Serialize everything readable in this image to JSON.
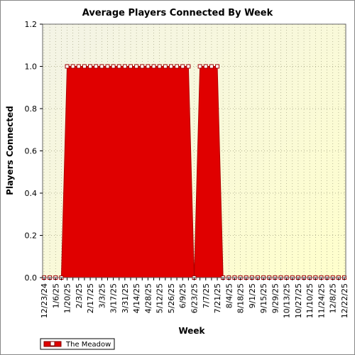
{
  "chart_data": {
    "type": "area",
    "title": "Average Players Connected By Week",
    "xlabel": "Week",
    "ylabel": "Players Connected",
    "ylim": [
      0,
      1.2
    ],
    "yticks": [
      0.0,
      0.2,
      0.4,
      0.6,
      0.8,
      1.0,
      1.2
    ],
    "ytick_labels": [
      "0.0",
      "0.2",
      "0.4",
      "0.6",
      "0.8",
      "1.0",
      "1.2"
    ],
    "grid": true,
    "legend_position": "bottom-left",
    "x": [
      "12/23/24",
      "12/30/24",
      "1/6/25",
      "1/13/25",
      "1/20/25",
      "1/27/25",
      "2/3/25",
      "2/10/25",
      "2/17/25",
      "2/24/25",
      "3/3/25",
      "3/10/25",
      "3/17/25",
      "3/24/25",
      "3/31/25",
      "4/7/25",
      "4/14/25",
      "4/21/25",
      "4/28/25",
      "5/5/25",
      "5/12/25",
      "5/19/25",
      "5/26/25",
      "6/2/25",
      "6/9/25",
      "6/16/25",
      "6/23/25",
      "6/30/25",
      "7/7/25",
      "7/14/25",
      "7/21/25",
      "7/28/25",
      "8/4/25",
      "8/11/25",
      "8/18/25",
      "8/25/25",
      "9/1/25",
      "9/8/25",
      "9/15/25",
      "9/22/25",
      "9/29/25",
      "10/6/25",
      "10/13/25",
      "10/20/25",
      "10/27/25",
      "11/3/25",
      "11/10/25",
      "11/17/25",
      "11/24/25",
      "12/1/25",
      "12/8/25",
      "12/15/25",
      "12/22/25"
    ],
    "x_tick_labels": [
      "12/23/24",
      "1/6/25",
      "1/20/25",
      "2/3/25",
      "2/17/25",
      "3/3/25",
      "3/17/25",
      "3/31/25",
      "4/14/25",
      "4/28/25",
      "5/12/25",
      "5/26/25",
      "6/9/25",
      "6/23/25",
      "7/7/25",
      "7/21/25",
      "8/4/25",
      "8/18/25",
      "9/1/25",
      "9/15/25",
      "9/29/25",
      "10/13/25",
      "10/27/25",
      "11/10/25",
      "11/24/25",
      "12/8/25",
      "12/22/25"
    ],
    "series": [
      {
        "name": "The Meadow",
        "color": "#e00000",
        "values": [
          0,
          0,
          0,
          0,
          1,
          1,
          1,
          1,
          1,
          1,
          1,
          1,
          1,
          1,
          1,
          1,
          1,
          1,
          1,
          1,
          1,
          1,
          1,
          1,
          1,
          1,
          0,
          1,
          1,
          1,
          1,
          0,
          0,
          0,
          0,
          0,
          0,
          0,
          0,
          0,
          0,
          0,
          0,
          0,
          0,
          0,
          0,
          0,
          0,
          0,
          0,
          0,
          0
        ]
      }
    ],
    "plot_background": [
      "#f6f6dc",
      "#ffffcc"
    ],
    "grid_color": "#a0a080"
  }
}
